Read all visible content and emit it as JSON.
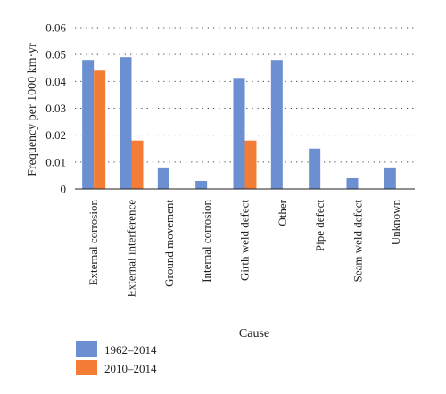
{
  "chart_data": {
    "type": "bar",
    "title": "",
    "xlabel": "Cause",
    "ylabel": "Frequency per 1000 km·yr",
    "ylim": [
      0,
      0.06
    ],
    "yticks": [
      "0",
      "0.01",
      "0.02",
      "0.03",
      "0.04",
      "0.05",
      "0.06"
    ],
    "grid": "horizontal dotted",
    "legend_position": "bottom-left",
    "categories": [
      "External corrosion",
      "External interference",
      "Ground movement",
      "Internal corrosion",
      "Girth weld defect",
      "Other",
      "Pipe defect",
      "Seam weld defect",
      "Unknown"
    ],
    "series": [
      {
        "name": "1962–2014",
        "color": "#6b8fd1",
        "values": [
          0.048,
          0.049,
          0.008,
          0.003,
          0.041,
          0.048,
          0.015,
          0.004,
          0.008
        ]
      },
      {
        "name": "2010–2014",
        "color": "#f47c34",
        "values": [
          0.044,
          0.018,
          0,
          0,
          0.018,
          0,
          0,
          0,
          0
        ]
      }
    ]
  }
}
